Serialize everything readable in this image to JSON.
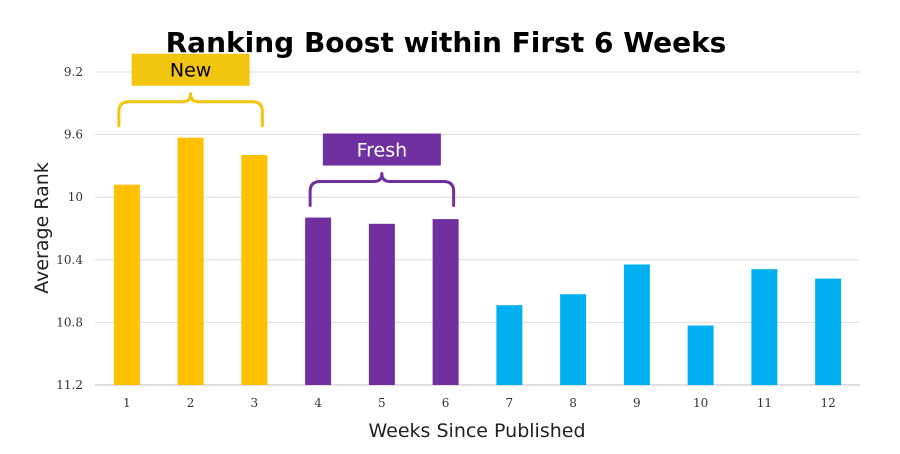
{
  "chart_data": {
    "type": "bar",
    "title": "Ranking Boost within First 6 Weeks",
    "xlabel": "Weeks Since Published",
    "ylabel": "Average Rank",
    "categories": [
      "1",
      "2",
      "3",
      "4",
      "5",
      "6",
      "7",
      "8",
      "9",
      "10",
      "11",
      "12"
    ],
    "values": [
      9.92,
      9.62,
      9.73,
      10.13,
      10.17,
      10.14,
      10.69,
      10.62,
      10.43,
      10.82,
      10.46,
      10.52
    ],
    "ylim": [
      9.2,
      11.2
    ],
    "y_inverted": true,
    "y_ticks": [
      "9.2",
      "9.6",
      "10",
      "10.4",
      "10.8",
      "11.2"
    ],
    "grid": true,
    "bar_colors": [
      "#FFC000",
      "#FFC000",
      "#FFC000",
      "#7030A0",
      "#7030A0",
      "#7030A0",
      "#00B0F0",
      "#00B0F0",
      "#00B0F0",
      "#00B0F0",
      "#00B0F0",
      "#00B0F0"
    ],
    "annotations": [
      {
        "label": "New",
        "from_category": "1",
        "to_category": "3",
        "box_color": "#F2C511",
        "text_color": "#000000",
        "bracket_color": "#F2C511"
      },
      {
        "label": "Fresh",
        "from_category": "4",
        "to_category": "6",
        "box_color": "#7030A0",
        "text_color": "#ffffff",
        "bracket_color": "#7030A0"
      }
    ]
  }
}
